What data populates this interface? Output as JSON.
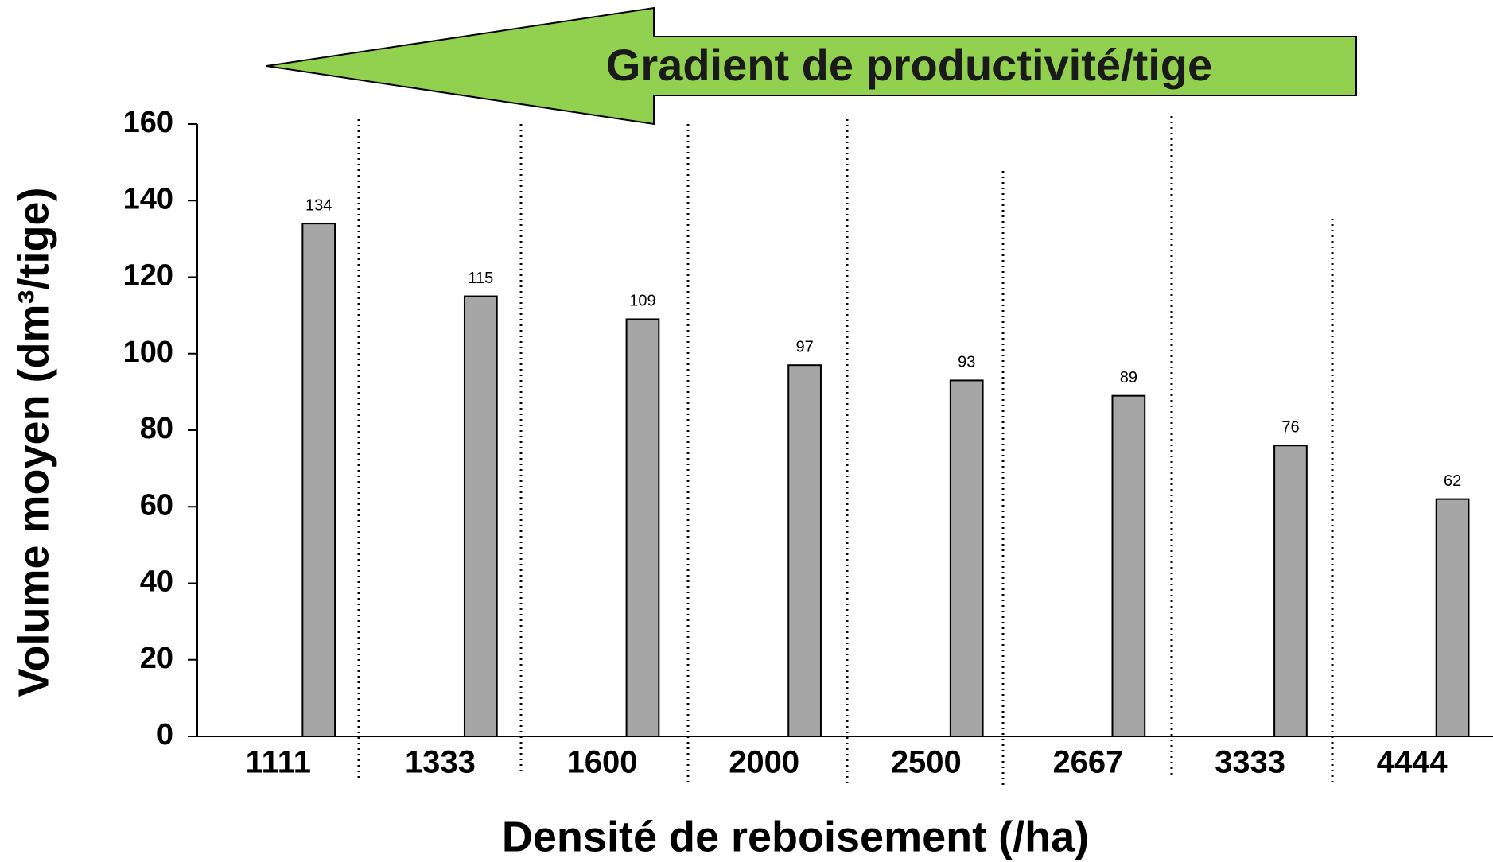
{
  "chart_data": {
    "type": "bar",
    "annotation": "Gradient de productivité/tige",
    "x_label": "Densité de reboisement (/ha)",
    "y_label": "Volume moyen (dm³/tige)",
    "categories": [
      "1111",
      "1333",
      "1600",
      "2000",
      "2500",
      "2667",
      "3333",
      "4444"
    ],
    "values": [
      134,
      115,
      109,
      97,
      93,
      89,
      76,
      62
    ],
    "color": "#a6a6a6",
    "ylim": [
      0,
      160
    ],
    "yticks": [
      0,
      20,
      40,
      60,
      80,
      100,
      120,
      140,
      160
    ],
    "grid": false
  }
}
